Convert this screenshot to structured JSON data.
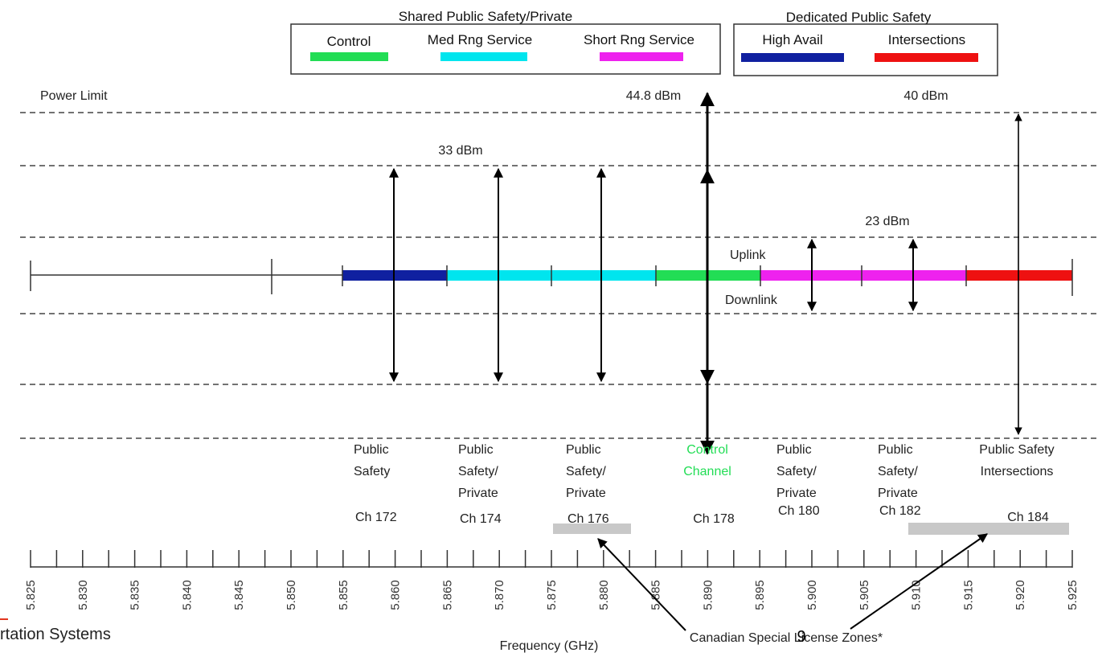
{
  "legend": {
    "shared_title": "Shared Public Safety/Private",
    "dedicated_title": "Dedicated Public Safety",
    "items": [
      {
        "label": "Control",
        "color": "#22dd55"
      },
      {
        "label": "Med Rng Service",
        "color": "#00e5ee"
      },
      {
        "label": "Short Rng Service",
        "color": "#ee22ee"
      },
      {
        "label": "High Avail",
        "color": "#1020a0"
      },
      {
        "label": "Intersections",
        "color": "#ee1111"
      }
    ]
  },
  "power": {
    "power_limit_label": "Power Limit",
    "level_44_8": "44.8 dBm",
    "level_40": "40 dBm",
    "level_33": "33 dBm",
    "level_23": "23 dBm"
  },
  "band": {
    "uplink": "Uplink",
    "downlink": "Downlink"
  },
  "channels": [
    {
      "lines": [
        "Public",
        "Safety"
      ],
      "ch": "Ch 172",
      "color": "#222222"
    },
    {
      "lines": [
        "Public",
        "Safety/",
        "Private"
      ],
      "ch": "Ch 174",
      "color": "#222222"
    },
    {
      "lines": [
        "Public",
        "Safety/",
        "Private"
      ],
      "ch": "Ch 176",
      "color": "#222222"
    },
    {
      "lines": [
        "Control",
        "Channel"
      ],
      "ch": "Ch 178",
      "color": "#22dd55"
    },
    {
      "lines": [
        "Public",
        "Safety/",
        "Private"
      ],
      "ch": "Ch 180",
      "color": "#222222"
    },
    {
      "lines": [
        "Public",
        "Safety/",
        "Private"
      ],
      "ch": "Ch 182",
      "color": "#222222"
    },
    {
      "lines": [
        "Public Safety",
        "Intersections"
      ],
      "ch": "Ch 184",
      "color": "#222222"
    }
  ],
  "axis": {
    "ticks": [
      "5.825",
      "5.830",
      "5.835",
      "5.840",
      "5.845",
      "5.850",
      "5.855",
      "5.860",
      "5.865",
      "5.870",
      "5.875",
      "5.880",
      "5.885",
      "5.890",
      "5.895",
      "5.900",
      "5.905",
      "5.910",
      "5.915",
      "5.920",
      "5.925"
    ],
    "xlabel": "Frequency (GHz)"
  },
  "annotations": {
    "canadian_zones": "Canadian Special License Zones*",
    "page_number": "9",
    "footer_fragment": "rtation Systems"
  }
}
